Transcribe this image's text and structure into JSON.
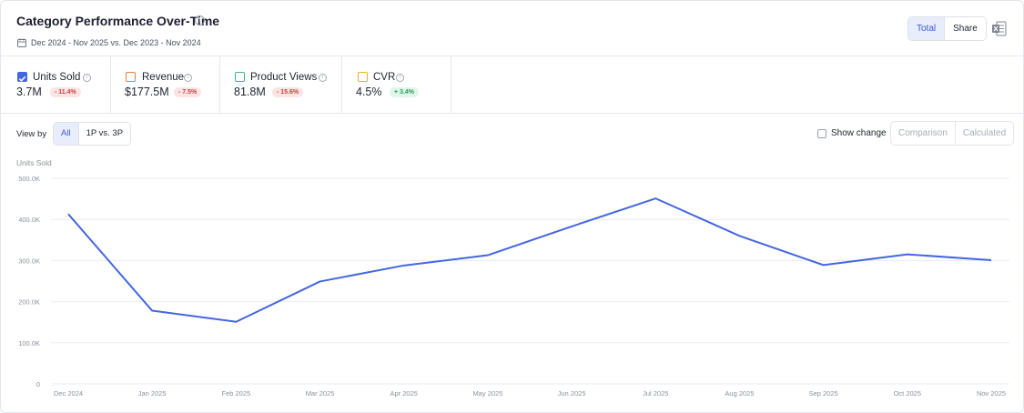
{
  "header": {
    "title": "Category Performance Over-Time",
    "info_icon": "info-icon",
    "calendar_icon": "calendar-icon",
    "date_range": "Dec 2024 - Nov 2025 vs. Dec 2023 - Nov 2024",
    "toggle": {
      "total_label": "Total",
      "share_label": "Share",
      "selected": "Total"
    },
    "export_icon": "excel-icon"
  },
  "metrics": [
    {
      "label": "Units Sold",
      "value": "3.7M",
      "change": "- 11.4%",
      "direction": "neg",
      "checked": true,
      "color": "#4466e0"
    },
    {
      "label": "Revenue",
      "value": "$177.5M",
      "change": "- 7.5%",
      "direction": "neg",
      "checked": false,
      "color": "#e0803a"
    },
    {
      "label": "Product Views",
      "value": "81.8M",
      "change": "- 15.6%",
      "direction": "neg",
      "checked": false,
      "color": "#3bb39a"
    },
    {
      "label": "CVR",
      "value": "4.5%",
      "change": "+ 3.4%",
      "direction": "pos",
      "checked": false,
      "color": "#e8b02a"
    }
  ],
  "controls": {
    "view_by_label": "View by",
    "view_by_options": [
      "All",
      "1P vs. 3P"
    ],
    "view_by_selected": "All",
    "show_change_label": "Show change",
    "show_change_checked": false,
    "mode_options": [
      "Comparison",
      "Calculated"
    ]
  },
  "chart_data": {
    "type": "line",
    "ylabel": "Units Sold",
    "x": [
      "Dec 2024",
      "Jan 2025",
      "Feb 2025",
      "Mar 2025",
      "Apr 2025",
      "May 2025",
      "Jun 2025",
      "Jul 2025",
      "Aug 2025",
      "Sep 2025",
      "Oct 2025",
      "Nov 2025"
    ],
    "series": [
      {
        "values": [
          413000,
          178000,
          151000,
          249000,
          288000,
          313000,
          383000,
          451000,
          360000,
          289000,
          315000,
          301000
        ],
        "color": "#4466e0"
      }
    ],
    "ylim": [
      0,
      500000
    ],
    "yticks": [
      0,
      100000,
      200000,
      300000,
      400000,
      500000
    ],
    "ytick_labels": [
      "0",
      "100.0K",
      "200.0K",
      "300.0K",
      "400.0K",
      "500.0K"
    ],
    "grid": true,
    "legend": "none"
  }
}
